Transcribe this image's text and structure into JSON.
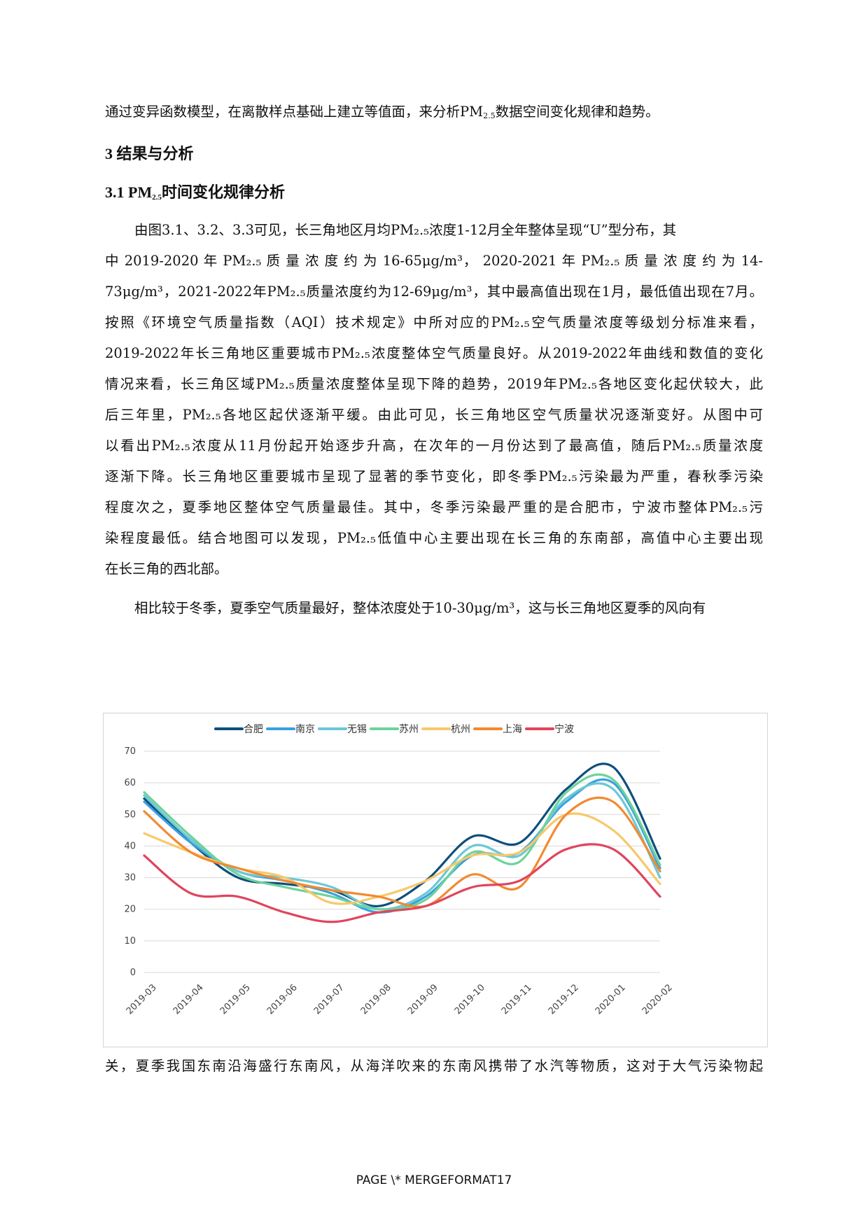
{
  "paragraph0": {
    "l1_a": "通过变异函数模型，在离散样点基础上建立等值面，来分析PM",
    "l1_sub": "2.5",
    "l1_b": "数据空间变化规律和趋势。"
  },
  "headings": {
    "h1": "3 结果与分析",
    "h2_a": "3.1 PM",
    "h2_sub": "2.5",
    "h2_b": "时间变化规律分析"
  },
  "paragraph1": {
    "lines": [
      "由图3.1、3.2、3.3可见，长三角地区月均PM₂.₅浓度1-12月全年整体呈现“U”型分布，其",
      "中 2019-2020 年 PM₂.₅ 质 量 浓 度 约 为 16-65μg/m³， 2020-2021 年 PM₂.₅ 质 量 浓 度 约 为 14-",
      "73μg/m³，2021-2022年PM₂.₅质量浓度约为12-69μg/m³，其中最高值出现在1月，最低值出现在7月。",
      "按照《环境空气质量指数（AQI）技术规定》中所对应的PM₂.₅空气质量浓度等级划分标准来看，",
      "2019-2022年长三角地区重要城市PM₂.₅浓度整体空气质量良好。从2019-2022年曲线和数值的变化",
      "情况来看，长三角区域PM₂.₅质量浓度整体呈现下降的趋势，2019年PM₂.₅各地区变化起伏较大，此",
      "后三年里，PM₂.₅各地区起伏逐渐平缓。由此可见，长三角地区空气质量状况逐渐变好。从图中可",
      "以看出PM₂.₅浓度从11月份起开始逐步升高，在次年的一月份达到了最高值，随后PM₂.₅质量浓度",
      "逐渐下降。长三角地区重要城市呈现了显著的季节变化，即冬季PM₂.₅污染最为严重，春秋季污染",
      "程度次之，夏季地区整体空气质量最佳。其中，冬季污染最严重的是合肥市，宁波市整体PM₂.₅污",
      "染程度最低。结合地图可以发现，PM₂.₅低值中心主要出现在长三角的东南部，高值中心主要出现",
      "在长三角的西北部。"
    ]
  },
  "paragraph2": {
    "line1": "相比较于冬季，夏季空气质量最好，整体浓度处于10-30μg/m³，这与长三角地区夏季的风向有",
    "line2": "关，夏季我国东南沿海盛行东南风，从海洋吹来的东南风携带了水汽等物质，这对于大气污染物起"
  },
  "footer": {
    "text": "PAGE   \\* MERGEFORMAT17"
  },
  "chart_data": {
    "type": "line",
    "title": "",
    "xlabel": "",
    "ylabel": "",
    "ylim": [
      0,
      70
    ],
    "yticks": [
      "70",
      "60",
      "50",
      "40",
      "30",
      "20",
      "10",
      "0"
    ],
    "categories": [
      "2019-03",
      "2019-04",
      "2019-05",
      "2019-06",
      "2019-07",
      "2019-08",
      "2019-09",
      "2019-10",
      "2019-11",
      "2019-12",
      "2020-01",
      "2020-02"
    ],
    "series": [
      {
        "name": "合肥",
        "color": "#0d4f7c",
        "values": [
          55,
          41,
          30,
          28,
          26,
          21,
          29,
          43,
          41,
          58,
          65,
          36
        ]
      },
      {
        "name": "南京",
        "color": "#3aa0e0",
        "values": [
          54,
          41,
          32,
          29,
          25,
          19,
          24,
          37,
          38,
          54,
          60,
          33
        ]
      },
      {
        "name": "无锡",
        "color": "#6cc7d6",
        "values": [
          56,
          42,
          32,
          30,
          27,
          20,
          25,
          40,
          37,
          55,
          58,
          30
        ]
      },
      {
        "name": "苏州",
        "color": "#6dd39a",
        "values": [
          57,
          43,
          31,
          27,
          24,
          20,
          23,
          38,
          35,
          57,
          61,
          34
        ]
      },
      {
        "name": "杭州",
        "color": "#f8c86a",
        "values": [
          44,
          38,
          33,
          30,
          22,
          24,
          29,
          37,
          38,
          50,
          45,
          28
        ]
      },
      {
        "name": "上海",
        "color": "#f28a2e",
        "values": [
          51,
          38,
          33,
          29,
          26,
          24,
          21,
          31,
          27,
          50,
          54,
          32
        ]
      },
      {
        "name": "宁波",
        "color": "#e0455c",
        "values": [
          37,
          25,
          24,
          19,
          16,
          19,
          21,
          27,
          29,
          39,
          39,
          24
        ]
      }
    ]
  }
}
